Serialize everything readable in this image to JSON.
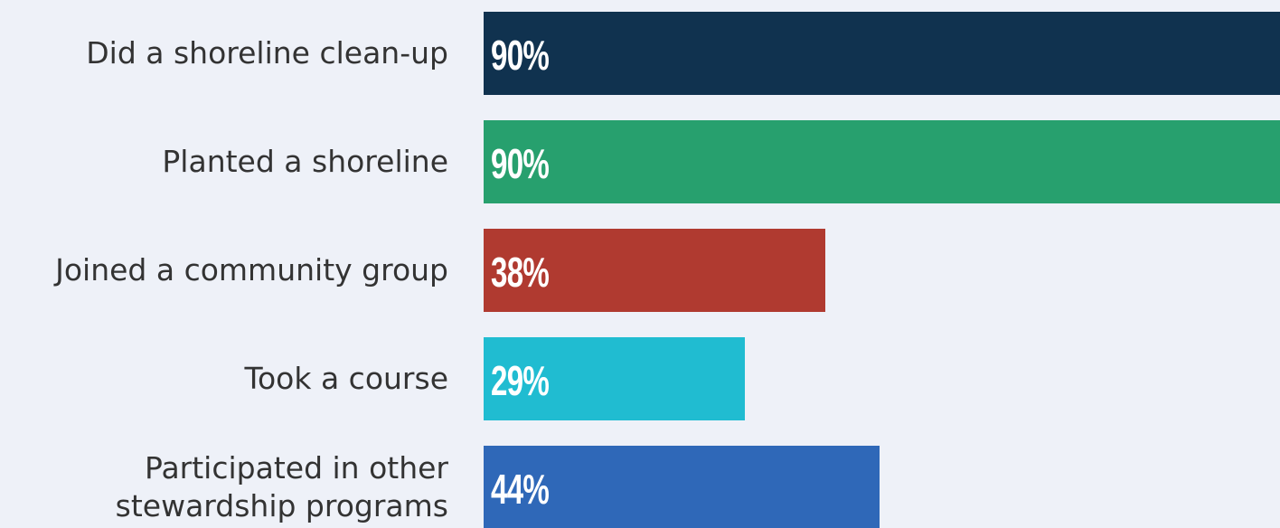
{
  "chart_data": {
    "type": "bar",
    "orientation": "horizontal",
    "categories": [
      "Did a shoreline clean-up",
      "Planted a shoreline",
      "Joined a community group",
      "Took a course",
      "Participated in other\nstewardship programs"
    ],
    "values": [
      90,
      90,
      38,
      29,
      44
    ],
    "value_labels": [
      "90%",
      "90%",
      "38%",
      "29%",
      "44%"
    ],
    "colors": [
      "#10324f",
      "#27a06e",
      "#b03a30",
      "#20bcd1",
      "#2f68b8"
    ]
  }
}
